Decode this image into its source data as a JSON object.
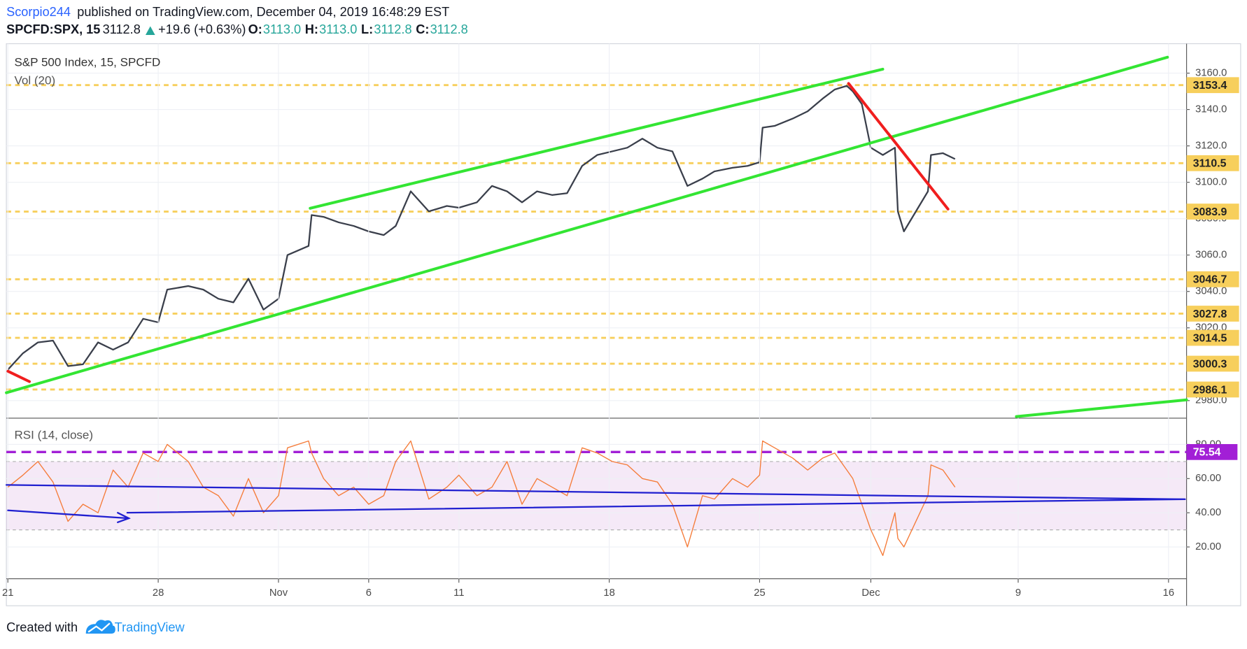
{
  "header": {
    "publisher": "Scorpio244",
    "published": "published on TradingView.com, December 04, 2019 16:48:29 EST",
    "symbol": "SPCFD:SPX, 15",
    "last": "3112.8",
    "change": "+19.6 (+0.63%)",
    "ohlc": [
      {
        "label": "O:",
        "value": "3113.0"
      },
      {
        "label": "H:",
        "value": "3113.0"
      },
      {
        "label": "L:",
        "value": "3112.8"
      },
      {
        "label": "C:",
        "value": "3112.8"
      }
    ]
  },
  "footer": {
    "created": "Created with",
    "brand": "TradingView"
  },
  "chart_data": [
    {
      "type": "line",
      "title": "S&P 500 Index, 15, SPCFD",
      "subtitle": "Vol (20)",
      "color": "#3a3f4b",
      "x": [
        0,
        0.5,
        1.0,
        1.5,
        2.0,
        2.5,
        3.0,
        3.5,
        4.0,
        4.5,
        5.0,
        5.3,
        6.0,
        6.5,
        7.0,
        7.5,
        8.0,
        8.5,
        9.0,
        9.3,
        10.0,
        10.1,
        10.5,
        11.0,
        11.5,
        12.0,
        12.5,
        12.9,
        13.4,
        14.0,
        14.6,
        15.0,
        15.6,
        16.1,
        16.6,
        17.1,
        17.6,
        18.1,
        18.6,
        19.1,
        19.6,
        20.1,
        20.6,
        21.1,
        21.6,
        22.1,
        22.6,
        23.1,
        23.5,
        24.1,
        24.6,
        25.0,
        25.1,
        25.5,
        26.1,
        26.6,
        27.1,
        27.5,
        27.9,
        28.1,
        28.4,
        28.7,
        29.1,
        29.5,
        29.6,
        29.8,
        30.2,
        30.6,
        30.7,
        31.1,
        31.5
      ],
      "values": [
        2997,
        3006,
        3012,
        3013,
        2999,
        3000,
        3012,
        3008,
        3012,
        3025,
        3023,
        3041,
        3043,
        3041,
        3036,
        3034,
        3047,
        3030,
        3036,
        3060,
        3065,
        3082,
        3081,
        3078,
        3076,
        3073,
        3071,
        3076,
        3095,
        3084,
        3087,
        3086,
        3089,
        3098,
        3095,
        3089,
        3095,
        3093,
        3094,
        3109,
        3115,
        3117,
        3119,
        3124,
        3119,
        3117,
        3098,
        3102,
        3106,
        3108,
        3109,
        3111,
        3130,
        3131,
        3135,
        3139,
        3146,
        3151,
        3153,
        3150,
        3143,
        3119,
        3115,
        3119,
        3084,
        3073,
        3084,
        3095,
        3115,
        3116,
        3112.8
      ],
      "xlim": [
        -0.05,
        39.2
      ],
      "ylim": [
        2970.8,
        3173.1
      ],
      "yticks": [
        {
          "value": 3160,
          "label": "3160.0"
        },
        {
          "value": 3140,
          "label": "3140.0"
        },
        {
          "value": 3120,
          "label": "3120.0"
        },
        {
          "value": 3100,
          "label": "3100.0"
        },
        {
          "value": 3080,
          "label": "3080.0"
        },
        {
          "value": 3060,
          "label": "3060.0"
        },
        {
          "value": 3040,
          "label": "3040.0"
        },
        {
          "value": 3020,
          "label": "3020.0"
        },
        {
          "value": 2980,
          "label": "2980.0"
        }
      ],
      "levels": [
        3153.4,
        3110.5,
        3083.9,
        3046.7,
        3027.8,
        3014.5,
        3000.3,
        2986.1
      ],
      "level_color": "#f7cf5c",
      "grid": true
    },
    {
      "type": "line",
      "title": "RSI (14, close)",
      "color": "#f57c3a",
      "x": [
        0,
        0.5,
        1.0,
        1.5,
        2.0,
        2.5,
        3.0,
        3.5,
        4.0,
        4.5,
        5.0,
        5.3,
        6.0,
        6.5,
        7.0,
        7.5,
        8.0,
        8.5,
        9.0,
        9.3,
        10.0,
        10.1,
        10.5,
        11.0,
        11.5,
        12.0,
        12.5,
        12.9,
        13.4,
        14.0,
        14.6,
        15.0,
        15.6,
        16.1,
        16.6,
        17.1,
        17.6,
        18.1,
        18.6,
        19.1,
        19.6,
        20.1,
        20.6,
        21.1,
        21.6,
        22.1,
        22.6,
        23.1,
        23.5,
        24.1,
        24.6,
        25.0,
        25.1,
        25.5,
        26.1,
        26.6,
        27.1,
        27.5,
        27.9,
        28.1,
        28.4,
        28.7,
        29.1,
        29.5,
        29.6,
        29.8,
        30.2,
        30.6,
        30.7,
        31.1,
        31.5
      ],
      "values": [
        55,
        62,
        70,
        58,
        35,
        45,
        40,
        65,
        55,
        75,
        70,
        80,
        70,
        55,
        50,
        38,
        60,
        40,
        50,
        78,
        82,
        75,
        60,
        50,
        55,
        45,
        50,
        70,
        82,
        48,
        55,
        62,
        50,
        55,
        70,
        45,
        60,
        55,
        50,
        78,
        75,
        70,
        68,
        60,
        58,
        45,
        20,
        50,
        48,
        60,
        55,
        62,
        82,
        78,
        72,
        65,
        72,
        75,
        65,
        60,
        45,
        30,
        15,
        40,
        25,
        20,
        35,
        50,
        68,
        65,
        55
      ],
      "xlim": [
        -0.05,
        39.2
      ],
      "ylim": [
        1.4,
        94.9
      ],
      "yticks": [
        {
          "value": 20,
          "label": "20.00"
        },
        {
          "value": 40,
          "label": "40.00"
        },
        {
          "value": 60,
          "label": "60.00"
        },
        {
          "value": 80,
          "label": "80.00"
        }
      ],
      "band": [
        30,
        70
      ],
      "band_color": "#9c27b0",
      "level": 75.54,
      "level_color": "#a21fd6",
      "grid": true,
      "xticks": [
        {
          "value": 0,
          "label": "21"
        },
        {
          "value": 5,
          "label": "28"
        },
        {
          "value": 9,
          "label": "Nov"
        },
        {
          "value": 12,
          "label": "6"
        },
        {
          "value": 15,
          "label": "11"
        },
        {
          "value": 20,
          "label": "18"
        },
        {
          "value": 25,
          "label": "25"
        },
        {
          "value": 28.7,
          "label": "Dec"
        },
        {
          "value": 33.6,
          "label": "9"
        },
        {
          "value": 38.6,
          "label": "16"
        }
      ]
    }
  ]
}
